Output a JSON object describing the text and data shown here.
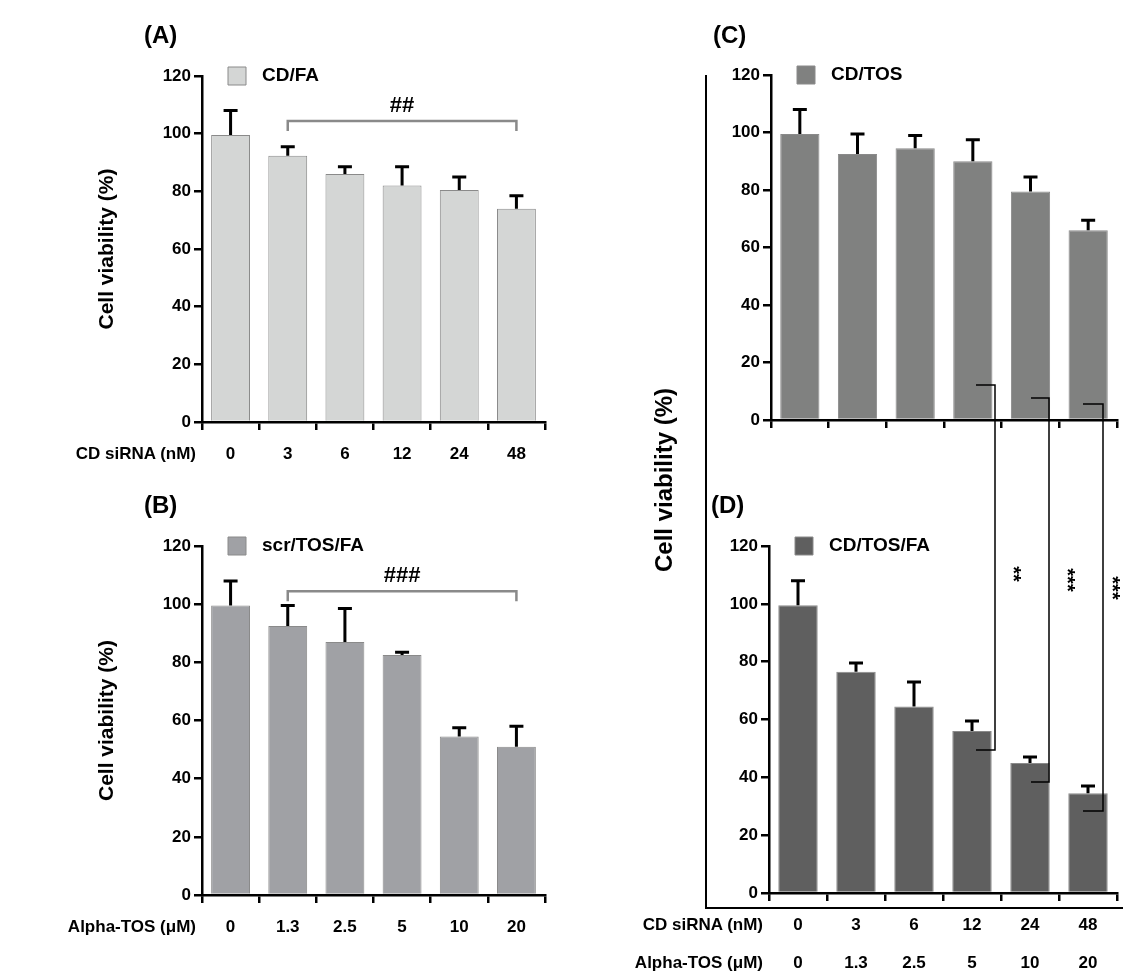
{
  "chart_data": [
    {
      "type": "bar",
      "title": "(A)",
      "xlabel": "CD siRNA (nM)",
      "ylabel": "Cell viability (%)",
      "categories": [
        "0",
        "3",
        "6",
        "12",
        "24",
        "48"
      ],
      "series": [
        {
          "name": "CD/FA",
          "color": "#d4d6d5",
          "values": [
            99.5,
            92.3,
            86,
            82,
            80.5,
            74
          ],
          "errors": [
            [
              99.5,
              108
            ],
            [
              92.3,
              95.5
            ],
            [
              86,
              88.5
            ],
            [
              82,
              88.5
            ],
            [
              80.5,
              85
            ],
            [
              74,
              78.5
            ]
          ]
        }
      ],
      "ylim": [
        0,
        120
      ],
      "yticks": [
        0,
        20,
        40,
        60,
        80,
        100,
        120
      ],
      "legend": "top left",
      "annotations": [
        "##"
      ]
    },
    {
      "type": "bar",
      "title": "(B)",
      "xlabel": "Alpha-TOS (μM)",
      "ylabel": "Cell viability (%)",
      "categories": [
        "0",
        "1.3",
        "2.5",
        "5",
        "10",
        "20"
      ],
      "series": [
        {
          "name": "scr/TOS/FA",
          "color": "#a0a1a5",
          "values": [
            99.5,
            92.5,
            87,
            82.5,
            54.5,
            51
          ],
          "errors": [
            [
              99.5,
              108
            ],
            [
              92.5,
              99.5
            ],
            [
              87,
              98.5
            ],
            [
              82.5,
              83.5
            ],
            [
              54.5,
              57.5
            ],
            [
              51,
              58
            ]
          ]
        }
      ],
      "ylim": [
        0,
        120
      ],
      "yticks": [
        0,
        20,
        40,
        60,
        80,
        100,
        120
      ],
      "legend": "top left",
      "annotations": [
        "###"
      ]
    },
    {
      "type": "bar",
      "title": "(C)",
      "ylabel": "Cell viability (%)",
      "categories": [
        null,
        null,
        null,
        null,
        null,
        null
      ],
      "tick_labels": "y",
      "series": [
        {
          "name": "CD/TOS",
          "color": "#808180",
          "values": [
            99.5,
            92.5,
            94.5,
            90,
            79.5,
            66
          ],
          "errors": [
            [
              99.5,
              108
            ],
            [
              92.5,
              99.5
            ],
            [
              94.5,
              99
            ],
            [
              90,
              97.5
            ],
            [
              79.5,
              84.5
            ],
            [
              66,
              69.5
            ]
          ]
        }
      ],
      "ylim": [
        0,
        120
      ],
      "yticks": [
        0,
        20,
        40,
        60,
        80,
        100,
        120
      ],
      "legend": "top left"
    },
    {
      "type": "bar",
      "title": "(D)",
      "xlabel": "CD siRNA (nM)\nAlpha-TOS (μM)",
      "categories": [
        "0\n0",
        "3\n1.3",
        "6\n2.5",
        "12\n5",
        "24\n10",
        "48\n20"
      ],
      "series": [
        {
          "name": "CD/TOS/FA",
          "color": "#5f5f5f",
          "values": [
            99.5,
            76.5,
            64.5,
            56,
            45,
            34.5
          ],
          "errors": [
            [
              99.5,
              108
            ],
            [
              76.5,
              79.5
            ],
            [
              64.5,
              73
            ],
            [
              56,
              59.5
            ],
            [
              45,
              47
            ],
            [
              34.5,
              37
            ]
          ]
        }
      ],
      "ylim": [
        0,
        120
      ],
      "yticks": [
        0,
        20,
        40,
        60,
        80,
        100,
        120
      ],
      "legend": "top left",
      "annotations": [
        "**",
        "***",
        "***"
      ]
    }
  ]
}
